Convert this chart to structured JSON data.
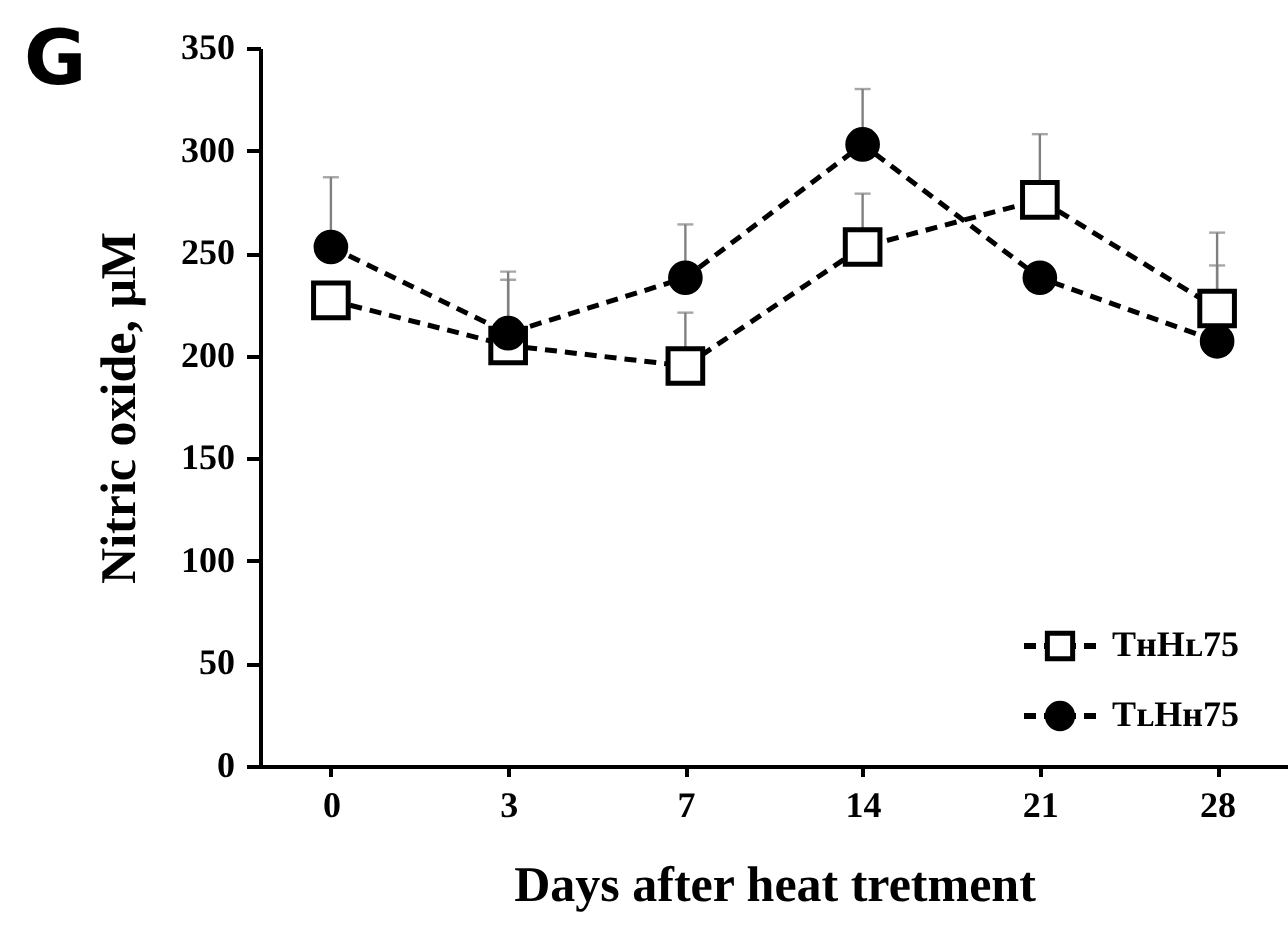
{
  "chart_data": {
    "type": "line",
    "title": "G",
    "xlabel": "Days after heat tretment",
    "ylabel": "Nitric oxide, μM",
    "categories": [
      "0",
      "3",
      "7",
      "14",
      "21",
      "28"
    ],
    "series": [
      {
        "name": "TʜHʟ75",
        "color": "#000000",
        "marker": "square",
        "values": [
          227,
          205,
          195,
          253,
          276,
          223
        ],
        "errors": [
          null,
          [
            205,
            237
          ],
          [
            195,
            221
          ],
          [
            253,
            279
          ],
          [
            276,
            308
          ],
          [
            223,
            260
          ]
        ]
      },
      {
        "name": "TʟHʜ75",
        "color": "#000000",
        "marker": "circle",
        "values": [
          253,
          211,
          238,
          303,
          238,
          207
        ],
        "errors": [
          [
            253,
            287
          ],
          [
            211,
            241
          ],
          [
            238,
            264
          ],
          [
            303,
            330
          ],
          null,
          [
            207,
            244
          ]
        ]
      }
    ],
    "ylim": [
      0,
      350
    ],
    "yticks": [
      0,
      50,
      100,
      150,
      200,
      250,
      300,
      350
    ],
    "grid": false,
    "legend": "bottom right",
    "line_style": "dashed"
  }
}
